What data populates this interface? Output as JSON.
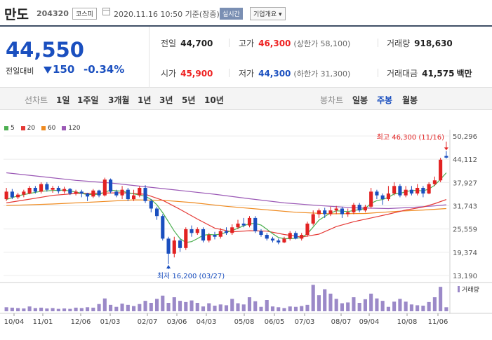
{
  "header": {
    "name": "만도",
    "code": "204320",
    "market": "코스피",
    "asof": "2020.11.16 10:50 기준(장중)",
    "realtime": "실시간",
    "corp_info": "기업개요 ▾"
  },
  "price": {
    "current": "44,550",
    "change_label": "전일대비",
    "change_amount": "150",
    "change_pct": "-0.34%"
  },
  "stats": {
    "prev_label": "전일",
    "prev": "44,700",
    "high_label": "고가",
    "high": "46,300",
    "upper_limit": "(상한가 58,100)",
    "volume_label": "거래량",
    "volume": "918,630",
    "open_label": "시가",
    "open": "45,900",
    "low_label": "저가",
    "low": "44,300",
    "lower_limit": "(하한가 31,300)",
    "amount_label": "거래대금",
    "amount": "41,575",
    "amount_unit": "백만"
  },
  "toolbar": {
    "line_chart": "선차트",
    "periods": [
      "1일",
      "1주일",
      "3개월",
      "1년",
      "3년",
      "5년",
      "10년"
    ],
    "candle_chart": "봉차트",
    "candles": [
      "일봉",
      "주봉",
      "월봉"
    ],
    "active_candle": "주봉"
  },
  "colors": {
    "up": "#e22222",
    "down": "#1a4fbf",
    "ma5": "#4caf50",
    "ma20": "#e53935",
    "ma60": "#ef8a1f",
    "ma120": "#9b59b6",
    "volume": "#9b89c8"
  },
  "chart_data": {
    "type": "candlestick",
    "legend": [
      {
        "label": "5",
        "color": "#4caf50"
      },
      {
        "label": "20",
        "color": "#e53935"
      },
      {
        "label": "60",
        "color": "#ef8a1f"
      },
      {
        "label": "120",
        "color": "#9b59b6"
      }
    ],
    "y_ticks": [
      "50,296",
      "44,112",
      "37,927",
      "31,743",
      "25,559",
      "19,374",
      "13,190"
    ],
    "y_range": [
      13190,
      50296
    ],
    "x_labels": [
      "10/04",
      "11/01",
      "12/06",
      "01/03",
      "02/07",
      "03/06",
      "04/03",
      "05/08",
      "06/05",
      "07/03",
      "08/07",
      "09/04",
      "10/08",
      "11/06"
    ],
    "high_label": "최고 46,300 (11/16)",
    "low_label": "최저 16,200 (03/27)",
    "volume_label": "거래량",
    "candles": [
      [
        33500,
        35500,
        36500,
        33000
      ],
      [
        35500,
        34000,
        36200,
        33500
      ],
      [
        34000,
        34700,
        35200,
        33500
      ],
      [
        34700,
        35500,
        36000,
        34000
      ],
      [
        35000,
        36500,
        37000,
        34800
      ],
      [
        36500,
        35500,
        37000,
        35000
      ],
      [
        35500,
        37500,
        38000,
        35000
      ],
      [
        37500,
        36000,
        38000,
        35500
      ],
      [
        36000,
        36500,
        37000,
        35200
      ],
      [
        36500,
        35600,
        37000,
        35000
      ],
      [
        35600,
        36200,
        36800,
        35000
      ],
      [
        36200,
        35000,
        36500,
        34600
      ],
      [
        35000,
        35500,
        36000,
        34500
      ],
      [
        35500,
        35000,
        36000,
        34000
      ],
      [
        35000,
        34200,
        35200,
        33000
      ],
      [
        34200,
        35800,
        36200,
        33800
      ],
      [
        35800,
        34500,
        36000,
        34000
      ],
      [
        34500,
        38700,
        39200,
        34200
      ],
      [
        38700,
        35500,
        39000,
        35000
      ],
      [
        35500,
        34500,
        36000,
        34000
      ],
      [
        34500,
        36000,
        37000,
        33500
      ],
      [
        36000,
        33500,
        36500,
        33000
      ],
      [
        33500,
        34500,
        36000,
        33000
      ],
      [
        34500,
        36500,
        37000,
        34000
      ],
      [
        36500,
        33000,
        37200,
        32500
      ],
      [
        33000,
        31000,
        33500,
        30000
      ],
      [
        31000,
        29000,
        31500,
        28000
      ],
      [
        29000,
        23000,
        29500,
        22500
      ],
      [
        23000,
        19000,
        23500,
        16200
      ],
      [
        19000,
        22500,
        23500,
        18000
      ],
      [
        22500,
        20500,
        23000,
        19500
      ],
      [
        20500,
        25500,
        26000,
        20000
      ],
      [
        25500,
        24500,
        26500,
        23500
      ],
      [
        24500,
        25500,
        26000,
        24000
      ],
      [
        25500,
        22500,
        26000,
        22000
      ],
      [
        22500,
        24000,
        24500,
        22000
      ],
      [
        24000,
        23500,
        24800,
        22800
      ],
      [
        23500,
        25000,
        25800,
        23000
      ],
      [
        25000,
        24500,
        26000,
        24000
      ],
      [
        24500,
        26000,
        26800,
        24000
      ],
      [
        26000,
        27000,
        28000,
        25500
      ],
      [
        27000,
        26500,
        28500,
        26000
      ],
      [
        26500,
        28500,
        29000,
        26000
      ],
      [
        28500,
        25000,
        29000,
        24500
      ],
      [
        25000,
        24000,
        25500,
        23500
      ],
      [
        24000,
        23000,
        24500,
        22500
      ],
      [
        23000,
        22500,
        23500,
        22000
      ],
      [
        22500,
        22000,
        23000,
        21500
      ],
      [
        22000,
        23000,
        23500,
        21800
      ],
      [
        23000,
        24500,
        25000,
        22500
      ],
      [
        24500,
        23000,
        25000,
        22800
      ],
      [
        23000,
        24000,
        24500,
        22500
      ],
      [
        24000,
        27000,
        27500,
        23500
      ],
      [
        27000,
        29500,
        30500,
        26500
      ],
      [
        29500,
        30500,
        31000,
        28500
      ],
      [
        30500,
        29500,
        31200,
        28500
      ],
      [
        29500,
        30500,
        31500,
        29000
      ],
      [
        30500,
        31000,
        31700,
        29500
      ],
      [
        31000,
        29500,
        31500,
        28500
      ],
      [
        29500,
        30000,
        31000,
        28800
      ],
      [
        30000,
        32000,
        32500,
        29500
      ],
      [
        32000,
        30500,
        32500,
        30000
      ],
      [
        30500,
        31500,
        32000,
        30000
      ],
      [
        31500,
        35500,
        36500,
        31000
      ],
      [
        35500,
        34500,
        36000,
        33500
      ],
      [
        34500,
        33500,
        35000,
        32000
      ],
      [
        33500,
        35000,
        37000,
        33000
      ],
      [
        35000,
        37000,
        38000,
        34500
      ],
      [
        37000,
        34500,
        37500,
        34000
      ],
      [
        34500,
        36000,
        37000,
        34000
      ],
      [
        36000,
        35000,
        37000,
        34500
      ],
      [
        35000,
        36500,
        37500,
        34500
      ],
      [
        36500,
        35000,
        37000,
        34000
      ],
      [
        35000,
        37500,
        38000,
        34800
      ],
      [
        37500,
        38500,
        39500,
        37000
      ],
      [
        38500,
        44000,
        44500,
        38000
      ],
      [
        45000,
        44550,
        46300,
        44300
      ]
    ],
    "ma5": [
      [
        0,
        33400
      ],
      [
        2,
        34400
      ],
      [
        4,
        35000
      ],
      [
        6,
        35600
      ],
      [
        8,
        35800
      ],
      [
        10,
        35900
      ],
      [
        12,
        35400
      ],
      [
        14,
        34700
      ],
      [
        16,
        34800
      ],
      [
        18,
        35900
      ],
      [
        20,
        35600
      ],
      [
        22,
        34900
      ],
      [
        24,
        34300
      ],
      [
        25,
        33400
      ],
      [
        26,
        32000
      ],
      [
        27,
        29900
      ],
      [
        28,
        27500
      ],
      [
        29,
        25000
      ],
      [
        30,
        23000
      ],
      [
        31,
        22000
      ],
      [
        32,
        22200
      ],
      [
        33,
        23000
      ],
      [
        34,
        23900
      ],
      [
        35,
        24100
      ],
      [
        36,
        24000
      ],
      [
        37,
        24200
      ],
      [
        38,
        24700
      ],
      [
        39,
        25100
      ],
      [
        40,
        25800
      ],
      [
        41,
        26400
      ],
      [
        42,
        27000
      ],
      [
        43,
        27000
      ],
      [
        44,
        26600
      ],
      [
        45,
        25500
      ],
      [
        46,
        24300
      ],
      [
        47,
        23300
      ],
      [
        48,
        23000
      ],
      [
        49,
        23000
      ],
      [
        50,
        23100
      ],
      [
        51,
        23300
      ],
      [
        52,
        24300
      ],
      [
        53,
        26100
      ],
      [
        54,
        27900
      ],
      [
        55,
        28900
      ],
      [
        56,
        29800
      ],
      [
        57,
        30400
      ],
      [
        58,
        30300
      ],
      [
        59,
        30200
      ],
      [
        60,
        30500
      ],
      [
        61,
        30700
      ],
      [
        62,
        31000
      ],
      [
        63,
        32400
      ],
      [
        64,
        33100
      ],
      [
        65,
        33400
      ],
      [
        66,
        34000
      ],
      [
        67,
        34900
      ],
      [
        68,
        35000
      ],
      [
        69,
        35500
      ],
      [
        70,
        35800
      ],
      [
        71,
        35800
      ],
      [
        72,
        35700
      ],
      [
        73,
        36200
      ],
      [
        74,
        37200
      ],
      [
        75,
        38800
      ],
      [
        76,
        40500
      ]
    ],
    "ma20": [
      [
        0,
        32500
      ],
      [
        4,
        33500
      ],
      [
        8,
        34500
      ],
      [
        12,
        35000
      ],
      [
        16,
        35100
      ],
      [
        20,
        35200
      ],
      [
        24,
        34800
      ],
      [
        27,
        33200
      ],
      [
        30,
        30800
      ],
      [
        33,
        28200
      ],
      [
        36,
        25800
      ],
      [
        39,
        24800
      ],
      [
        42,
        25100
      ],
      [
        45,
        25000
      ],
      [
        48,
        24100
      ],
      [
        51,
        23400
      ],
      [
        54,
        24200
      ],
      [
        57,
        26200
      ],
      [
        60,
        27500
      ],
      [
        63,
        28500
      ],
      [
        66,
        29500
      ],
      [
        69,
        30600
      ],
      [
        72,
        31400
      ],
      [
        74,
        32300
      ],
      [
        76,
        33400
      ]
    ],
    "ma60": [
      [
        0,
        31800
      ],
      [
        8,
        32200
      ],
      [
        16,
        32800
      ],
      [
        22,
        33300
      ],
      [
        27,
        33200
      ],
      [
        32,
        32600
      ],
      [
        38,
        31600
      ],
      [
        44,
        30800
      ],
      [
        50,
        30000
      ],
      [
        56,
        29600
      ],
      [
        62,
        29700
      ],
      [
        68,
        30300
      ],
      [
        72,
        30600
      ],
      [
        76,
        31000
      ]
    ],
    "ma120": [
      [
        0,
        40500
      ],
      [
        6,
        39500
      ],
      [
        12,
        38500
      ],
      [
        18,
        37800
      ],
      [
        24,
        36800
      ],
      [
        30,
        35800
      ],
      [
        36,
        34800
      ],
      [
        42,
        33600
      ],
      [
        48,
        32500
      ],
      [
        54,
        31800
      ],
      [
        60,
        31200
      ],
      [
        66,
        31000
      ],
      [
        70,
        31300
      ],
      [
        74,
        31700
      ],
      [
        76,
        32000
      ]
    ],
    "volume": [
      1.0,
      0.9,
      0.8,
      0.7,
      1.2,
      0.8,
      0.9,
      0.7,
      0.8,
      0.6,
      0.7,
      0.6,
      0.9,
      0.8,
      1.0,
      0.9,
      1.8,
      3.2,
      1.6,
      1.1,
      1.9,
      1.6,
      1.3,
      1.8,
      2.6,
      2.1,
      3.1,
      3.9,
      2.1,
      3.5,
      2.6,
      2.3,
      2.7,
      2.1,
      1.2,
      2.0,
      1.4,
      1.7,
      1.5,
      3.1,
      2.0,
      1.7,
      3.5,
      2.5,
      1.1,
      2.8,
      1.2,
      1.0,
      0.8,
      1.2,
      1.1,
      1.3,
      1.6,
      6.6,
      4.0,
      5.5,
      4.4,
      3.1,
      2.0,
      2.2,
      3.5,
      2.1,
      3.0,
      4.4,
      3.2,
      2.6,
      1.1,
      2.4,
      3.1,
      2.4,
      1.7,
      1.5,
      1.4,
      2.3,
      3.5,
      6.1,
      1.0
    ],
    "volume_max": 7
  }
}
